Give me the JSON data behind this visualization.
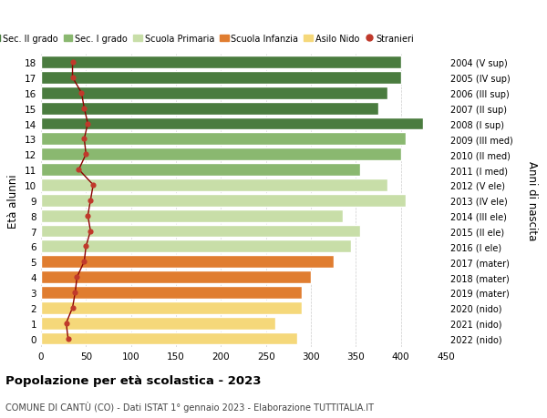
{
  "ages": [
    0,
    1,
    2,
    3,
    4,
    5,
    6,
    7,
    8,
    9,
    10,
    11,
    12,
    13,
    14,
    15,
    16,
    17,
    18
  ],
  "bar_values": [
    285,
    260,
    290,
    290,
    300,
    325,
    345,
    355,
    335,
    405,
    385,
    355,
    400,
    405,
    425,
    375,
    385,
    400,
    400
  ],
  "bar_colors": [
    "#f5d87a",
    "#f5d87a",
    "#f5d87a",
    "#e07d30",
    "#e07d30",
    "#e07d30",
    "#c8dea8",
    "#c8dea8",
    "#c8dea8",
    "#c8dea8",
    "#c8dea8",
    "#8ab870",
    "#8ab870",
    "#8ab870",
    "#4a7c3f",
    "#4a7c3f",
    "#4a7c3f",
    "#4a7c3f",
    "#4a7c3f"
  ],
  "stranieri_values": [
    30,
    28,
    35,
    38,
    40,
    48,
    50,
    55,
    52,
    55,
    58,
    42,
    50,
    48,
    52,
    48,
    45,
    35,
    35
  ],
  "right_labels": [
    "2022 (nido)",
    "2021 (nido)",
    "2020 (nido)",
    "2019 (mater)",
    "2018 (mater)",
    "2017 (mater)",
    "2016 (I ele)",
    "2015 (II ele)",
    "2014 (III ele)",
    "2013 (IV ele)",
    "2012 (V ele)",
    "2011 (I med)",
    "2010 (II med)",
    "2009 (III med)",
    "2008 (I sup)",
    "2007 (II sup)",
    "2006 (III sup)",
    "2005 (IV sup)",
    "2004 (V sup)"
  ],
  "legend_labels": [
    "Sec. II grado",
    "Sec. I grado",
    "Scuola Primaria",
    "Scuola Infanzia",
    "Asilo Nido",
    "Stranieri"
  ],
  "legend_colors": [
    "#4a7c3f",
    "#8ab870",
    "#c8dea8",
    "#e07d30",
    "#f5d87a",
    "#c0392b"
  ],
  "ylabel": "Età alunni",
  "right_ylabel": "Anni di nascita",
  "title": "Popolazione per età scolastica - 2023",
  "subtitle": "COMUNE DI CANTÙ (CO) - Dati ISTAT 1° gennaio 2023 - Elaborazione TUTTITALIA.IT",
  "xlim": [
    0,
    450
  ],
  "xticks": [
    0,
    50,
    100,
    150,
    200,
    250,
    300,
    350,
    400,
    450
  ],
  "bg_color": "#ffffff",
  "bar_edge_color": "#ffffff",
  "stranieri_color": "#c0392b",
  "stranieri_line_color": "#8b0000"
}
